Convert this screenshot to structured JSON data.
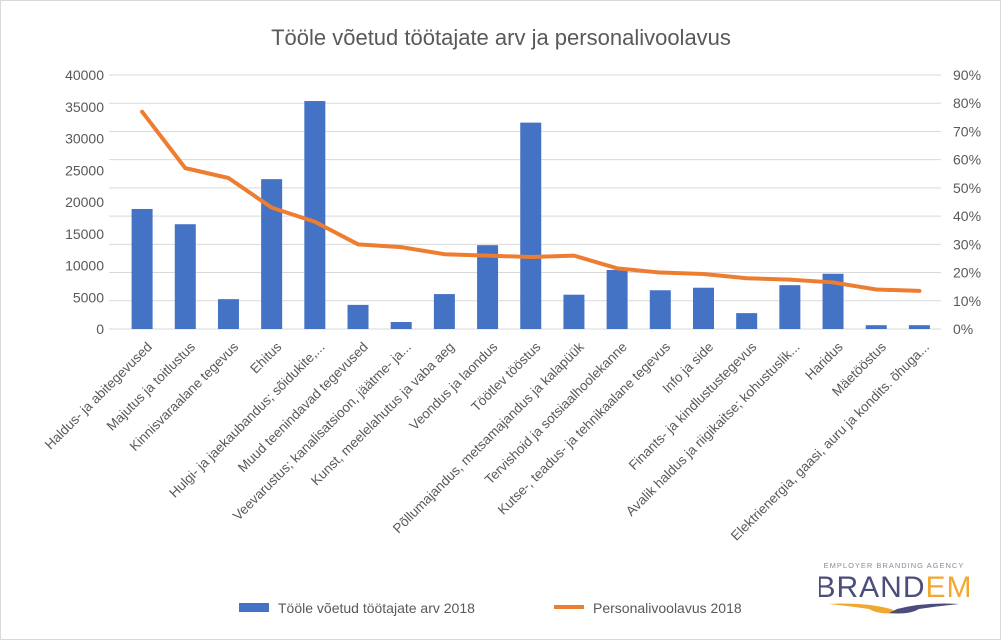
{
  "chart_data": {
    "type": "bar+line",
    "title": "Tööle võetud töötajate arv ja personalivoolavus",
    "categories": [
      "Haldus- ja abitegevused",
      "Majutus ja toitlustus",
      "Kinnisvaraalane tegevus",
      "Ehitus",
      "Hulgi- ja jaekaubandus; sõidukite,...",
      "Muud teenindavad tegevused",
      "Veevarustus; kanalisatsioon, jäätme- ja...",
      "Kunst, meelelahutus ja vaba aeg",
      "Veondus ja laondus",
      "Töötlev tööstus",
      "Põllumajandus, metsamajandus ja kalapüük",
      "Tervishoid ja sotsiaalhoolekanne",
      "Kutse-, teadus- ja tehnikaalane tegevus",
      "Info ja side",
      "Finants- ja kindlustustegevus",
      "Avalik haldus ja riigikaitse; kohustuslik...",
      "Haridus",
      "Mäetööstus",
      "Elektrienergia, gaasi, auru ja kondits. õhuga..."
    ],
    "series": [
      {
        "name": "Tööle võetud töötajate arv 2018",
        "type": "bar",
        "axis": "left",
        "color": "#4472C4",
        "values": [
          18900,
          16500,
          4700,
          23600,
          35900,
          3800,
          1100,
          5500,
          13200,
          32500,
          5400,
          9300,
          6100,
          6500,
          2500,
          6900,
          8700,
          600,
          600
        ]
      },
      {
        "name": "Personalivoolavus 2018",
        "type": "line",
        "axis": "right",
        "color": "#ED7D31",
        "values": [
          77,
          57,
          53.5,
          43,
          38,
          30,
          29,
          26.5,
          26,
          25.5,
          26,
          21.5,
          20,
          19.5,
          18,
          17.5,
          16.5,
          14,
          13.5
        ]
      }
    ],
    "y_left": {
      "range": [
        0,
        40000
      ],
      "ticks": [
        "0",
        "5000",
        "10000",
        "15000",
        "20000",
        "25000",
        "30000",
        "35000",
        "40000"
      ]
    },
    "y_right": {
      "range": [
        0,
        90
      ],
      "unit": "%",
      "ticks": [
        "0%",
        "10%",
        "20%",
        "30%",
        "40%",
        "50%",
        "60%",
        "70%",
        "80%",
        "90%"
      ]
    },
    "grid": true,
    "legend": "bottom"
  },
  "logo": {
    "tagline": "EMPLOYER BRANDING AGENCY",
    "name_part1": "BRAND",
    "name_part2": "EM",
    "color_dark": "#4b4e7a",
    "color_accent": "#f0a830"
  }
}
